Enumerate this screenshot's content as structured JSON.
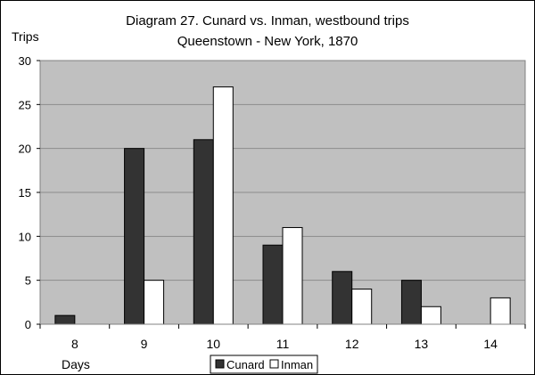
{
  "chart_data": {
    "type": "bar",
    "title": "Diagram 27. Cunard vs. Inman, westbound trips",
    "subtitle": "Queenstown - New York, 1870",
    "ylabel": "Trips",
    "xlabel": "Days",
    "categories": [
      "8",
      "9",
      "10",
      "11",
      "12",
      "13",
      "14"
    ],
    "ylim": [
      0,
      30
    ],
    "yticks": [
      0,
      5,
      10,
      15,
      20,
      25,
      30
    ],
    "grid": true,
    "legend_position": "bottom-right",
    "plot_background": "#c0c0c0",
    "series": [
      {
        "name": "Cunard",
        "values": [
          1,
          20,
          21,
          9,
          6,
          5,
          0
        ],
        "color": "#333333"
      },
      {
        "name": "Inman",
        "values": [
          0,
          5,
          27,
          11,
          4,
          2,
          3
        ],
        "color": "#ffffff"
      }
    ]
  }
}
